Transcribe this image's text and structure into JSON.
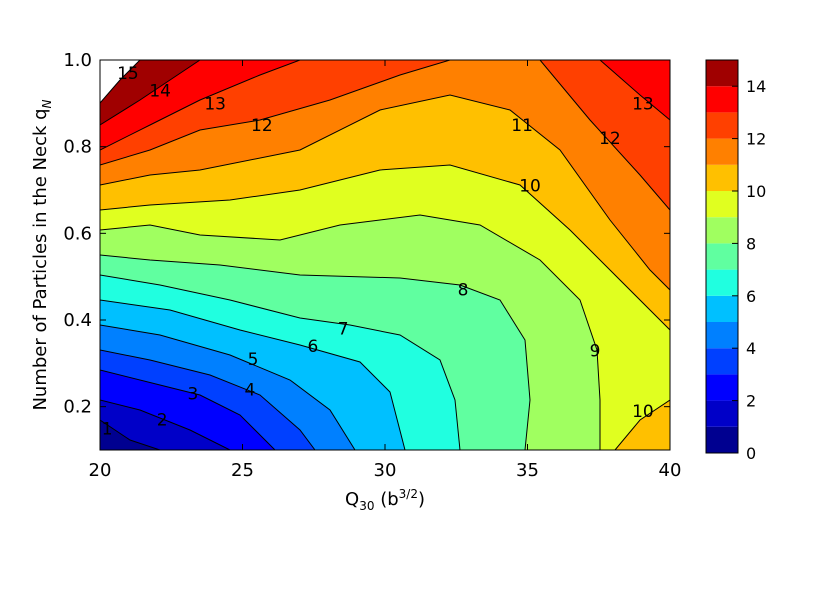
{
  "chart_data": {
    "type": "contour",
    "xlabel": {
      "base": "Q",
      "sub": "30",
      "rest": " (b",
      "sup": "3/2",
      "end": ")"
    },
    "ylabel": {
      "base": "Number of Particles in the Neck q",
      "sub": "N"
    },
    "xlim": [
      20,
      40
    ],
    "ylim": [
      0.1,
      1.0
    ],
    "xticks": [
      20,
      25,
      30,
      35,
      40
    ],
    "yticks": [
      0.2,
      0.4,
      0.6,
      0.8,
      {
        "value": 1.0,
        "label": "1.0"
      }
    ],
    "levels": [
      0,
      1,
      2,
      3,
      4,
      5,
      6,
      7,
      8,
      9,
      10,
      11,
      12,
      13,
      14,
      15
    ],
    "colors": [
      "#000090",
      "#0000c8",
      "#0000ff",
      "#0040ff",
      "#0080ff",
      "#00c0ff",
      "#20ffe0",
      "#60ffa0",
      "#a0ff60",
      "#e0ff20",
      "#ffc000",
      "#ff8000",
      "#ff4000",
      "#ff0000",
      "#a00000"
    ],
    "colorbar_ticks": [
      0,
      2,
      4,
      6,
      8,
      10,
      12,
      14
    ],
    "contour_labels": {
      "values": [
        15,
        14,
        13,
        12,
        11,
        10,
        9,
        8,
        7,
        6,
        5,
        4,
        3,
        2,
        1,
        10,
        12,
        13
      ],
      "x": [
        20.98,
        22.11,
        24.04,
        25.68,
        34.81,
        35.09,
        37.37,
        32.74,
        28.53,
        27.47,
        25.37,
        25.26,
        23.26,
        22.18,
        20.25,
        39.05,
        37.89,
        39.05
      ],
      "y": [
        0.97,
        0.93,
        0.9,
        0.85,
        0.85,
        0.71,
        0.33,
        0.47,
        0.38,
        0.34,
        0.31,
        0.24,
        0.23,
        0.17,
        0.15,
        0.19,
        0.82,
        0.9
      ]
    }
  }
}
